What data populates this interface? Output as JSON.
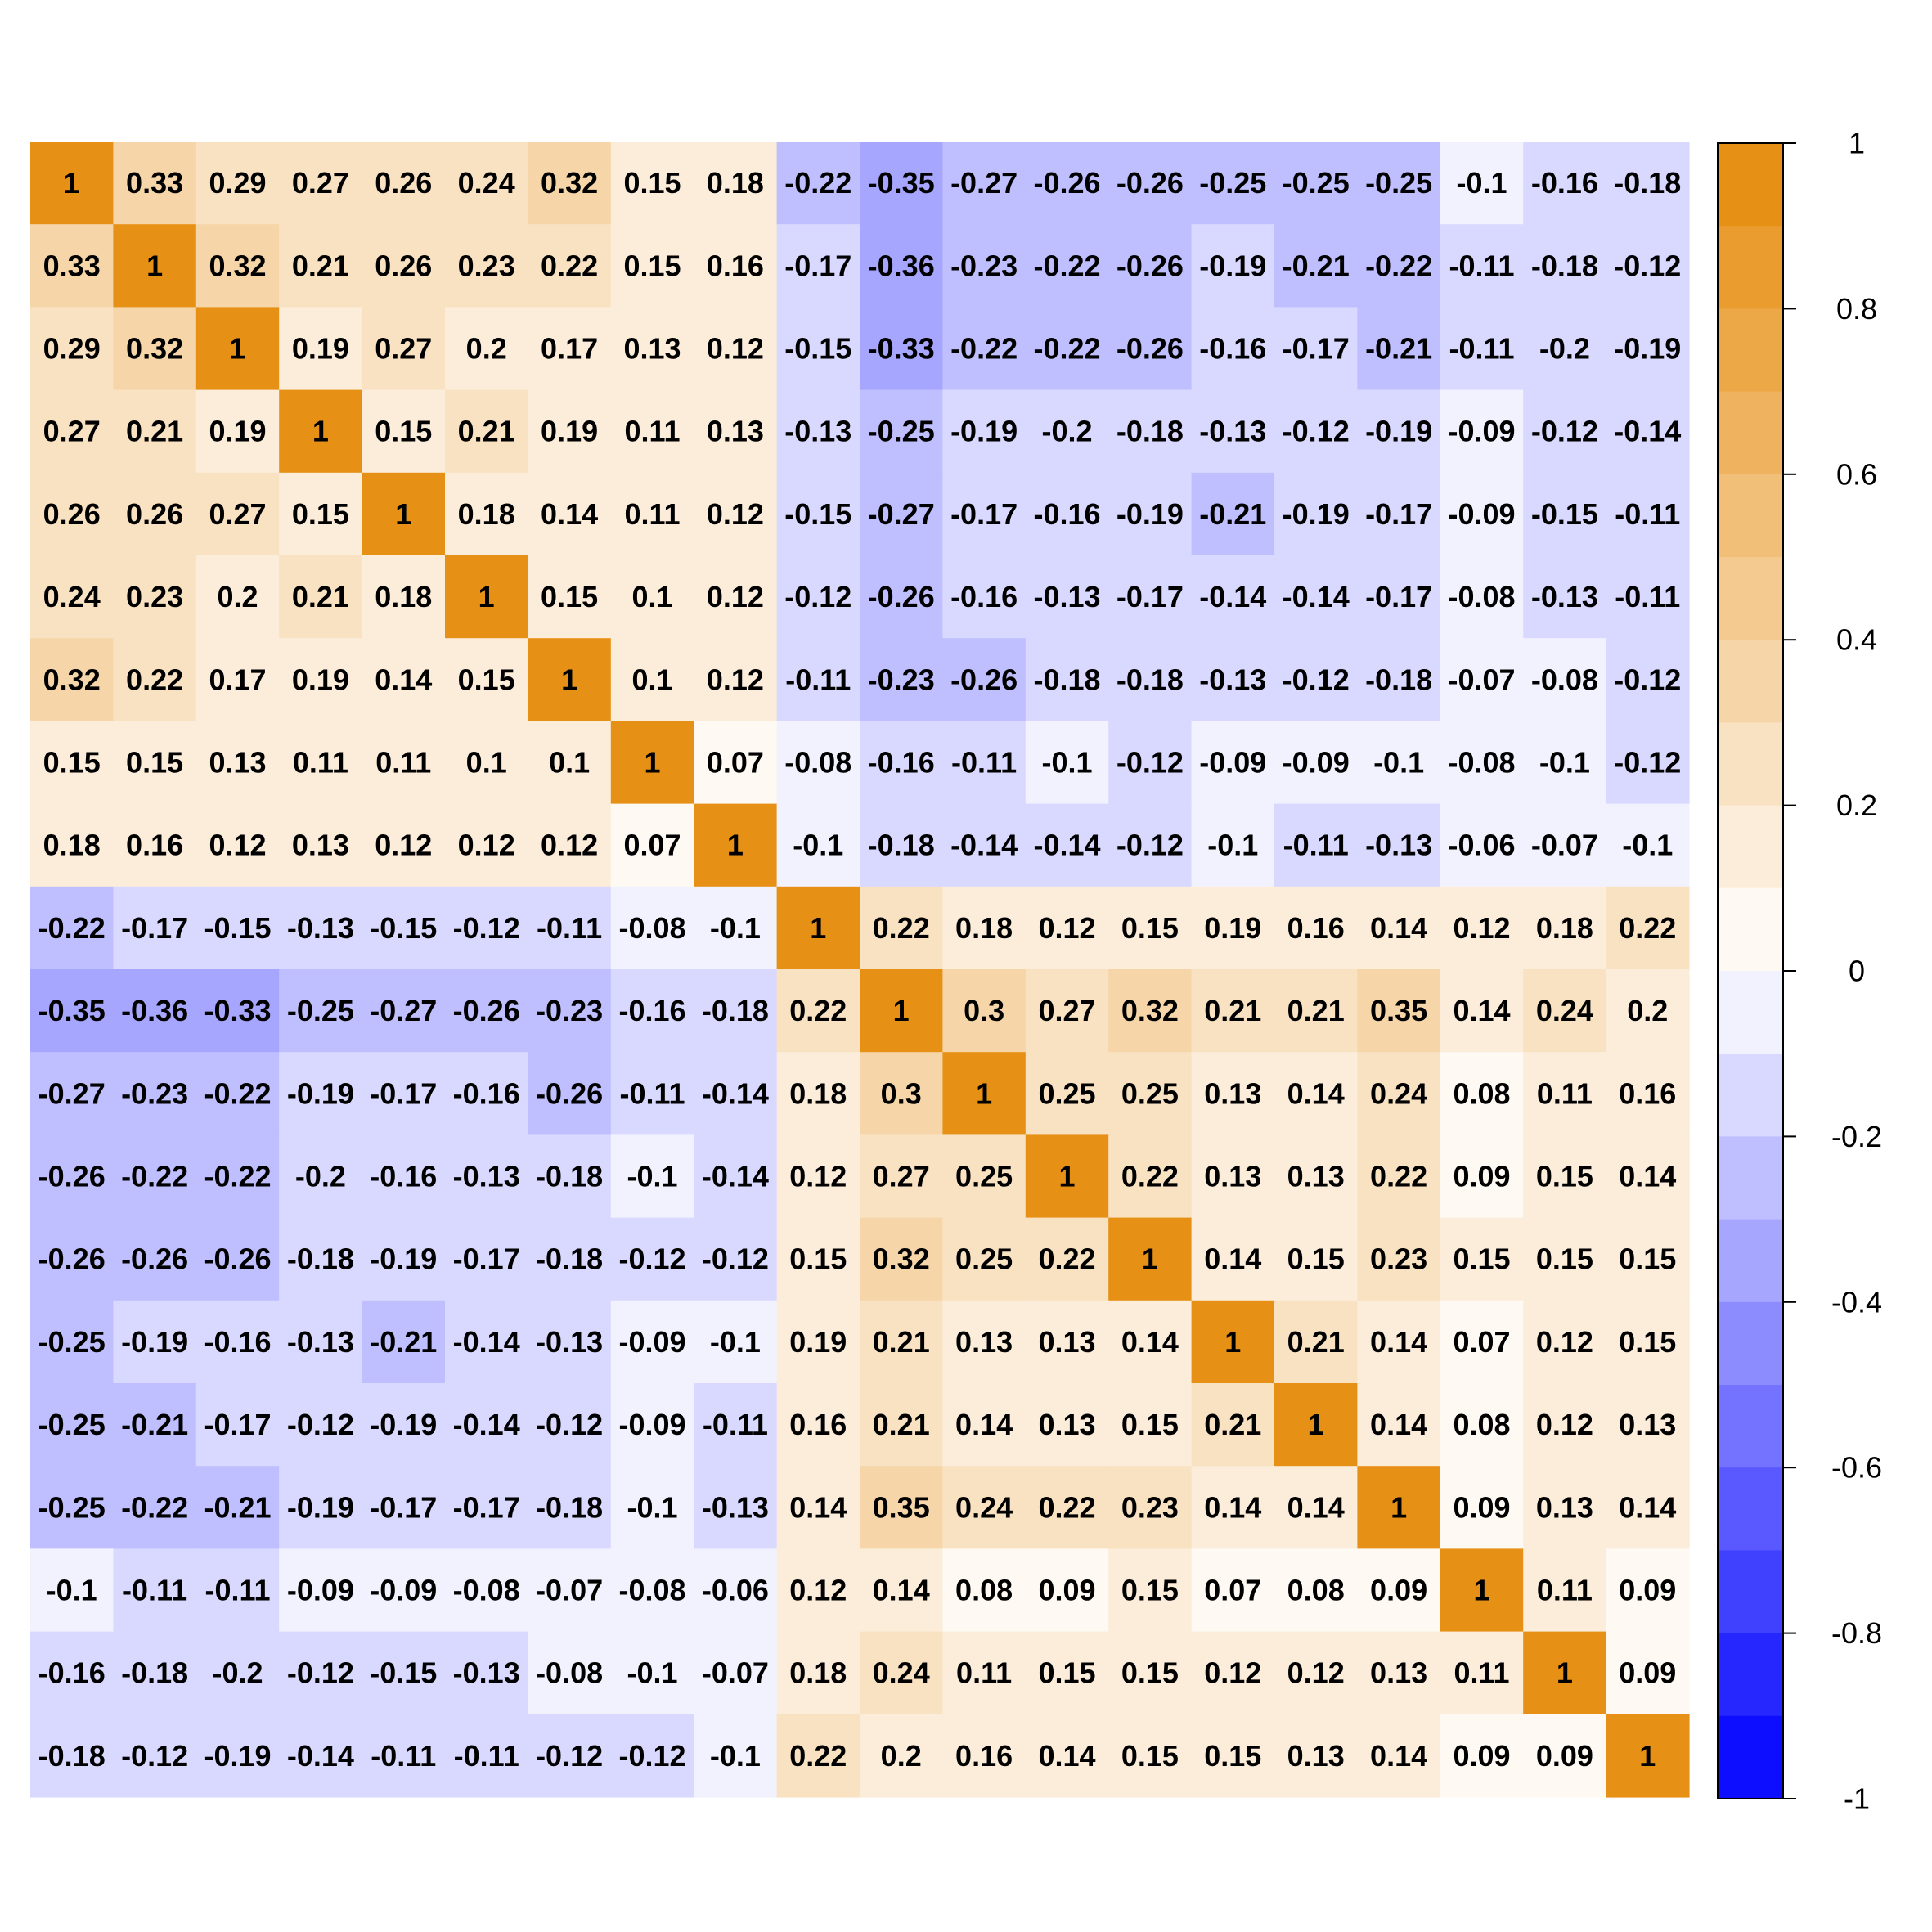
{
  "chart_data": {
    "type": "heatmap",
    "title": "",
    "xlabel": "",
    "ylabel": "",
    "n": 20,
    "matrix": [
      [
        1,
        0.33,
        0.29,
        0.27,
        0.26,
        0.24,
        0.32,
        0.15,
        0.18,
        -0.22,
        -0.35,
        -0.27,
        -0.26,
        -0.26,
        -0.25,
        -0.25,
        -0.25,
        -0.1,
        -0.16,
        -0.18
      ],
      [
        0.33,
        1,
        0.32,
        0.21,
        0.26,
        0.23,
        0.22,
        0.15,
        0.16,
        -0.17,
        -0.36,
        -0.23,
        -0.22,
        -0.26,
        -0.19,
        -0.21,
        -0.22,
        -0.11,
        -0.18,
        -0.12
      ],
      [
        0.29,
        0.32,
        1,
        0.19,
        0.27,
        0.2,
        0.17,
        0.13,
        0.12,
        -0.15,
        -0.33,
        -0.22,
        -0.22,
        -0.26,
        -0.16,
        -0.17,
        -0.21,
        -0.11,
        -0.2,
        -0.19
      ],
      [
        0.27,
        0.21,
        0.19,
        1,
        0.15,
        0.21,
        0.19,
        0.11,
        0.13,
        -0.13,
        -0.25,
        -0.19,
        -0.2,
        -0.18,
        -0.13,
        -0.12,
        -0.19,
        -0.09,
        -0.12,
        -0.14
      ],
      [
        0.26,
        0.26,
        0.27,
        0.15,
        1,
        0.18,
        0.14,
        0.11,
        0.12,
        -0.15,
        -0.27,
        -0.17,
        -0.16,
        -0.19,
        -0.21,
        -0.19,
        -0.17,
        -0.09,
        -0.15,
        -0.11
      ],
      [
        0.24,
        0.23,
        0.2,
        0.21,
        0.18,
        1,
        0.15,
        0.1,
        0.12,
        -0.12,
        -0.26,
        -0.16,
        -0.13,
        -0.17,
        -0.14,
        -0.14,
        -0.17,
        -0.08,
        -0.13,
        -0.11
      ],
      [
        0.32,
        0.22,
        0.17,
        0.19,
        0.14,
        0.15,
        1,
        0.1,
        0.12,
        -0.11,
        -0.23,
        -0.26,
        -0.18,
        -0.18,
        -0.13,
        -0.12,
        -0.18,
        -0.07,
        -0.08,
        -0.12
      ],
      [
        0.15,
        0.15,
        0.13,
        0.11,
        0.11,
        0.1,
        0.1,
        1,
        0.07,
        -0.08,
        -0.16,
        -0.11,
        -0.1,
        -0.12,
        -0.09,
        -0.09,
        -0.1,
        -0.08,
        -0.1,
        -0.12
      ],
      [
        0.18,
        0.16,
        0.12,
        0.13,
        0.12,
        0.12,
        0.12,
        0.07,
        1,
        -0.1,
        -0.18,
        -0.14,
        -0.14,
        -0.12,
        -0.1,
        -0.11,
        -0.13,
        -0.06,
        -0.07,
        -0.1
      ],
      [
        -0.22,
        -0.17,
        -0.15,
        -0.13,
        -0.15,
        -0.12,
        -0.11,
        -0.08,
        -0.1,
        1,
        0.22,
        0.18,
        0.12,
        0.15,
        0.19,
        0.16,
        0.14,
        0.12,
        0.18,
        0.22
      ],
      [
        -0.35,
        -0.36,
        -0.33,
        -0.25,
        -0.27,
        -0.26,
        -0.23,
        -0.16,
        -0.18,
        0.22,
        1,
        0.3,
        0.27,
        0.32,
        0.21,
        0.21,
        0.35,
        0.14,
        0.24,
        0.2
      ],
      [
        -0.27,
        -0.23,
        -0.22,
        -0.19,
        -0.17,
        -0.16,
        -0.26,
        -0.11,
        -0.14,
        0.18,
        0.3,
        1,
        0.25,
        0.25,
        0.13,
        0.14,
        0.24,
        0.08,
        0.11,
        0.16
      ],
      [
        -0.26,
        -0.22,
        -0.22,
        -0.2,
        -0.16,
        -0.13,
        -0.18,
        -0.1,
        -0.14,
        0.12,
        0.27,
        0.25,
        1,
        0.22,
        0.13,
        0.13,
        0.22,
        0.09,
        0.15,
        0.14
      ],
      [
        -0.26,
        -0.26,
        -0.26,
        -0.18,
        -0.19,
        -0.17,
        -0.18,
        -0.12,
        -0.12,
        0.15,
        0.32,
        0.25,
        0.22,
        1,
        0.14,
        0.15,
        0.23,
        0.15,
        0.15,
        0.15
      ],
      [
        -0.25,
        -0.19,
        -0.16,
        -0.13,
        -0.21,
        -0.14,
        -0.13,
        -0.09,
        -0.1,
        0.19,
        0.21,
        0.13,
        0.13,
        0.14,
        1,
        0.21,
        0.14,
        0.07,
        0.12,
        0.15
      ],
      [
        -0.25,
        -0.21,
        -0.17,
        -0.12,
        -0.19,
        -0.14,
        -0.12,
        -0.09,
        -0.11,
        0.16,
        0.21,
        0.14,
        0.13,
        0.15,
        0.21,
        1,
        0.14,
        0.08,
        0.12,
        0.13
      ],
      [
        -0.25,
        -0.22,
        -0.21,
        -0.19,
        -0.17,
        -0.17,
        -0.18,
        -0.1,
        -0.13,
        0.14,
        0.35,
        0.24,
        0.22,
        0.23,
        0.14,
        0.14,
        1,
        0.09,
        0.13,
        0.14
      ],
      [
        -0.1,
        -0.11,
        -0.11,
        -0.09,
        -0.09,
        -0.08,
        -0.07,
        -0.08,
        -0.06,
        0.12,
        0.14,
        0.08,
        0.09,
        0.15,
        0.07,
        0.08,
        0.09,
        1,
        0.11,
        0.09
      ],
      [
        -0.16,
        -0.18,
        -0.2,
        -0.12,
        -0.15,
        -0.13,
        -0.08,
        -0.1,
        -0.07,
        0.18,
        0.24,
        0.11,
        0.15,
        0.15,
        0.12,
        0.12,
        0.13,
        0.11,
        1,
        0.09
      ],
      [
        -0.18,
        -0.12,
        -0.19,
        -0.14,
        -0.11,
        -0.11,
        -0.12,
        -0.12,
        -0.1,
        0.22,
        0.2,
        0.16,
        0.14,
        0.15,
        0.15,
        0.13,
        0.14,
        0.09,
        0.09,
        1
      ]
    ],
    "color_scale": {
      "min": -1,
      "max": 1,
      "steps": 20,
      "low_color": "#0000ff",
      "mid_color": "#ffffff",
      "high_color": "#e68a0a"
    },
    "colorbar": {
      "placement": "right",
      "ticks": [
        1,
        0.8,
        0.6,
        0.4,
        0.2,
        0,
        -0.2,
        -0.4,
        -0.6,
        -0.8,
        -1
      ],
      "tick_labels": [
        "1",
        "0.8",
        "0.6",
        "0.4",
        "0.2",
        "0",
        "-0.2",
        "-0.4",
        "-0.6",
        "-0.8",
        "-1"
      ]
    },
    "grid": false,
    "cell_labels_shown": true
  }
}
